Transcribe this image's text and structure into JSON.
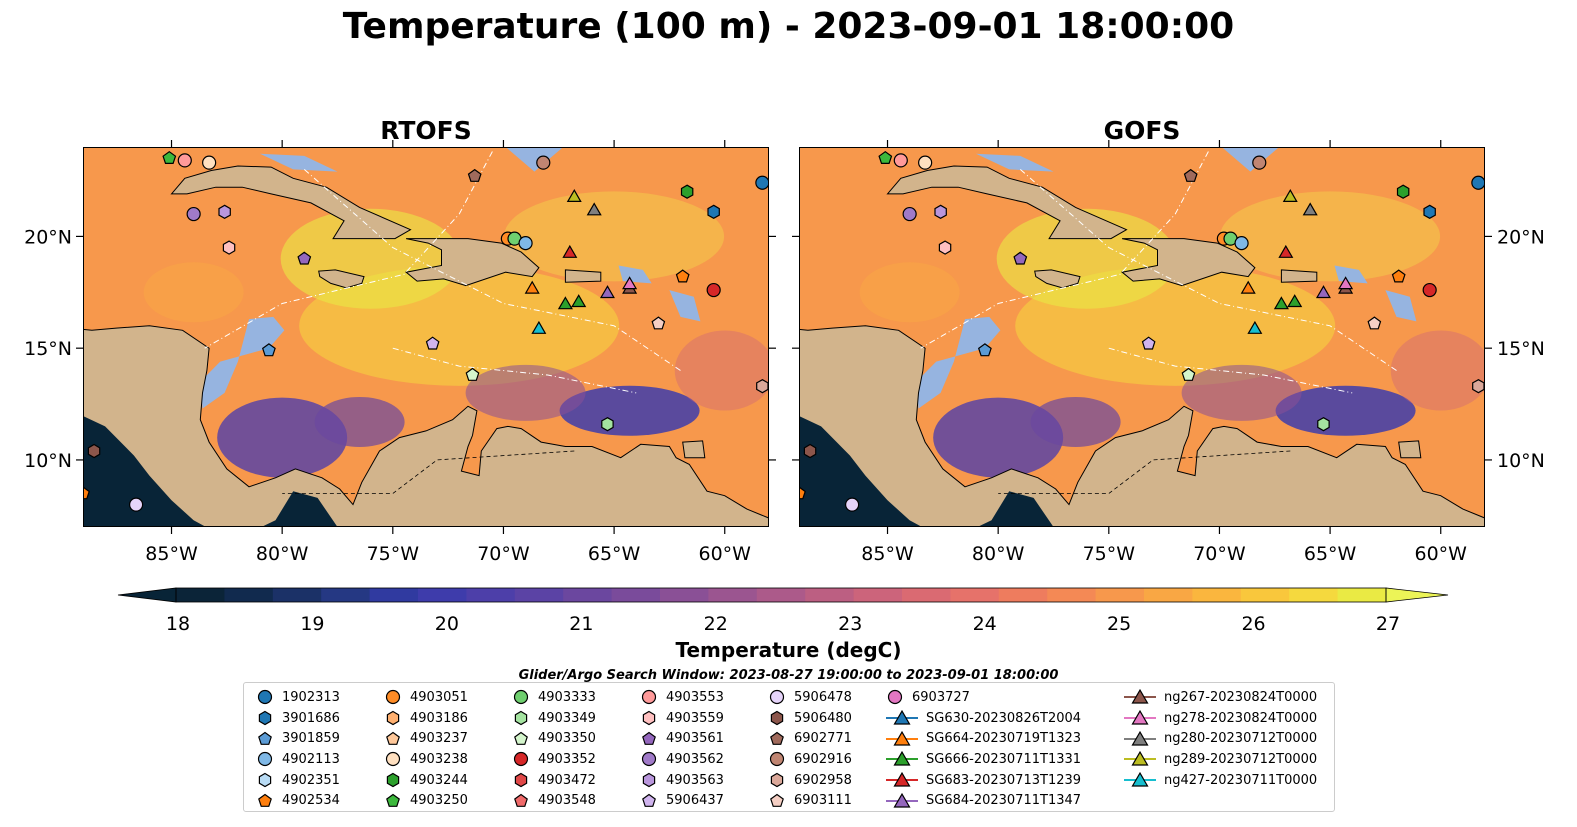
{
  "title": "Temperature (100 m) - 2023-09-01 18:00:00",
  "panels": [
    {
      "title": "RTOFS"
    },
    {
      "title": "GOFS"
    }
  ],
  "map": {
    "lon_range": [
      -89,
      -58
    ],
    "lat_range": [
      7,
      24
    ],
    "lon_ticks": [
      "85°W",
      "80°W",
      "75°W",
      "70°W",
      "65°W",
      "60°W"
    ],
    "lon_tick_values": [
      -85,
      -80,
      -75,
      -70,
      -65,
      -60
    ],
    "lat_ticks": [
      "20°N",
      "15°N",
      "10°N"
    ],
    "lat_tick_values": [
      20,
      15,
      10
    ],
    "land_color": "#d2b48c",
    "shelf_color": "#96b4e0",
    "deep_color": "#082437"
  },
  "colorbar": {
    "label": "Temperature (degC)",
    "min": 18,
    "max": 27,
    "ticks": [
      "18",
      "19",
      "20",
      "21",
      "22",
      "23",
      "24",
      "25",
      "26",
      "27"
    ],
    "colors": [
      "#0b2438",
      "#112a4e",
      "#1b3167",
      "#253883",
      "#303aa0",
      "#3e3cab",
      "#4d3fa9",
      "#5b43a5",
      "#6b479f",
      "#7a4b9b",
      "#8a5096",
      "#9b5590",
      "#ac5a8a",
      "#bc5f82",
      "#cc647b",
      "#da6a72",
      "#e6726a",
      "#ee7c5e",
      "#f48955",
      "#f7984c",
      "#f9a744",
      "#fab63e",
      "#f9c73c",
      "#f5d93e",
      "#eaea44"
    ],
    "extend_under": "#082437",
    "extend_over": "#ecf457"
  },
  "search_window": "Glider/Argo Search Window: 2023-08-27 19:00:00 to 2023-09-01 18:00:00",
  "legend": {
    "columns": [
      [
        {
          "label": "1902313",
          "marker": "circle",
          "color": "#1f77b4"
        },
        {
          "label": "3901686",
          "marker": "hexagon",
          "color": "#1f77b4"
        },
        {
          "label": "3901859",
          "marker": "pentagon",
          "color": "#5b9bd5"
        },
        {
          "label": "4902113",
          "marker": "circle",
          "color": "#7fb8e6"
        },
        {
          "label": "4902351",
          "marker": "hexagon",
          "color": "#b9dcf5"
        },
        {
          "label": "4902534",
          "marker": "pentagon",
          "color": "#ff7f0e"
        }
      ],
      [
        {
          "label": "4903051",
          "marker": "circle",
          "color": "#ff8c26"
        },
        {
          "label": "4903186",
          "marker": "hexagon",
          "color": "#ffb070"
        },
        {
          "label": "4903237",
          "marker": "pentagon",
          "color": "#ffc89a"
        },
        {
          "label": "4903238",
          "marker": "circle",
          "color": "#ffe0c0"
        },
        {
          "label": "4903244",
          "marker": "hexagon",
          "color": "#2ca02c"
        },
        {
          "label": "4903250",
          "marker": "pentagon",
          "color": "#3cb83c"
        }
      ],
      [
        {
          "label": "4903333",
          "marker": "circle",
          "color": "#6fcf6f"
        },
        {
          "label": "4903349",
          "marker": "hexagon",
          "color": "#a4e3a0"
        },
        {
          "label": "4903350",
          "marker": "pentagon",
          "color": "#d4f5cc"
        },
        {
          "label": "4903352",
          "marker": "circle",
          "color": "#d62728"
        },
        {
          "label": "4903472",
          "marker": "hexagon",
          "color": "#e04848"
        },
        {
          "label": "4903548",
          "marker": "pentagon",
          "color": "#f06a6a"
        }
      ],
      [
        {
          "label": "4903553",
          "marker": "circle",
          "color": "#ff9a9a"
        },
        {
          "label": "4903559",
          "marker": "hexagon",
          "color": "#ffc0c0"
        },
        {
          "label": "4903561",
          "marker": "pentagon",
          "color": "#9467bd"
        },
        {
          "label": "4903562",
          "marker": "circle",
          "color": "#a07ac8"
        },
        {
          "label": "4903563",
          "marker": "hexagon",
          "color": "#b996dc"
        },
        {
          "label": "5906437",
          "marker": "pentagon",
          "color": "#d0b4ee"
        }
      ],
      [
        {
          "label": "5906478",
          "marker": "circle",
          "color": "#e6d4fa"
        },
        {
          "label": "5906480",
          "marker": "hexagon",
          "color": "#8c564b"
        },
        {
          "label": "6902771",
          "marker": "pentagon",
          "color": "#a06a5c"
        },
        {
          "label": "6902916",
          "marker": "circle",
          "color": "#c08572"
        },
        {
          "label": "6902958",
          "marker": "hexagon",
          "color": "#dba89a"
        },
        {
          "label": "6903111",
          "marker": "pentagon",
          "color": "#f5cfc4"
        }
      ],
      [
        {
          "label": "6903727",
          "marker": "circle",
          "color": "#e377c2"
        },
        {
          "label": "SG630-20230826T2004",
          "marker": "line-triangle",
          "color": "#1f77b4"
        },
        {
          "label": "SG664-20230719T1323",
          "marker": "line-triangle",
          "color": "#ff7f0e"
        },
        {
          "label": "SG666-20230711T1331",
          "marker": "line-triangle",
          "color": "#2ca02c"
        },
        {
          "label": "SG683-20230713T1239",
          "marker": "line-triangle",
          "color": "#d62728"
        },
        {
          "label": "SG684-20230711T1347",
          "marker": "line-triangle",
          "color": "#9467bd"
        }
      ],
      [
        {
          "label": "ng267-20230824T0000",
          "marker": "line-triangle",
          "color": "#8c564b"
        },
        {
          "label": "ng278-20230824T0000",
          "marker": "line-triangle",
          "color": "#e377c2"
        },
        {
          "label": "ng280-20230712T0000",
          "marker": "line-triangle",
          "color": "#7f7f7f"
        },
        {
          "label": "ng289-20230712T0000",
          "marker": "line-triangle",
          "color": "#bcbd22"
        },
        {
          "label": "ng427-20230711T0000",
          "marker": "line-triangle",
          "color": "#17becf"
        }
      ]
    ]
  },
  "markers": [
    {
      "lon": -85.1,
      "lat": 23.5,
      "marker": "pentagon",
      "color": "#3cb83c"
    },
    {
      "lon": -84.4,
      "lat": 23.4,
      "marker": "circle",
      "color": "#ff9a9a"
    },
    {
      "lon": -83.3,
      "lat": 23.3,
      "marker": "circle",
      "color": "#ffe0c0"
    },
    {
      "lon": -84.0,
      "lat": 21.0,
      "marker": "circle",
      "color": "#a07ac8"
    },
    {
      "lon": -82.6,
      "lat": 21.1,
      "marker": "hexagon",
      "color": "#b996dc"
    },
    {
      "lon": -82.4,
      "lat": 19.5,
      "marker": "hexagon",
      "color": "#ffc0c0"
    },
    {
      "lon": -79.0,
      "lat": 19.0,
      "marker": "pentagon",
      "color": "#9467bd"
    },
    {
      "lon": -80.6,
      "lat": 14.9,
      "marker": "pentagon",
      "color": "#5b9bd5"
    },
    {
      "lon": -73.2,
      "lat": 15.2,
      "marker": "pentagon",
      "color": "#d0b4ee"
    },
    {
      "lon": -71.4,
      "lat": 13.8,
      "marker": "pentagon",
      "color": "#d4f5cc"
    },
    {
      "lon": -69.8,
      "lat": 19.9,
      "marker": "circle",
      "color": "#ff8c26"
    },
    {
      "lon": -69.5,
      "lat": 19.9,
      "marker": "circle",
      "color": "#6fcf6f"
    },
    {
      "lon": -69.0,
      "lat": 19.7,
      "marker": "circle",
      "color": "#7fb8e6"
    },
    {
      "lon": -71.3,
      "lat": 22.7,
      "marker": "pentagon",
      "color": "#a06a5c"
    },
    {
      "lon": -68.2,
      "lat": 23.3,
      "marker": "circle",
      "color": "#c08572"
    },
    {
      "lon": -68.7,
      "lat": 17.7,
      "marker": "triangle",
      "color": "#ff7f0e"
    },
    {
      "lon": -67.0,
      "lat": 19.3,
      "marker": "triangle",
      "color": "#d62728"
    },
    {
      "lon": -66.8,
      "lat": 21.8,
      "marker": "triangle",
      "color": "#bcbd22"
    },
    {
      "lon": -65.9,
      "lat": 21.2,
      "marker": "triangle",
      "color": "#7f7f7f"
    },
    {
      "lon": -67.2,
      "lat": 17.0,
      "marker": "triangle",
      "color": "#2ca02c"
    },
    {
      "lon": -66.6,
      "lat": 17.1,
      "marker": "triangle",
      "color": "#2ca02c"
    },
    {
      "lon": -68.4,
      "lat": 15.9,
      "marker": "triangle",
      "color": "#17becf"
    },
    {
      "lon": -65.3,
      "lat": 17.5,
      "marker": "triangle",
      "color": "#9467bd"
    },
    {
      "lon": -64.3,
      "lat": 17.7,
      "marker": "triangle",
      "color": "#8c564b"
    },
    {
      "lon": -64.3,
      "lat": 17.9,
      "marker": "triangle",
      "color": "#e377c2"
    },
    {
      "lon": -61.9,
      "lat": 18.2,
      "marker": "pentagon",
      "color": "#ff7f0e"
    },
    {
      "lon": -61.7,
      "lat": 22.0,
      "marker": "hexagon",
      "color": "#2ca02c"
    },
    {
      "lon": -60.5,
      "lat": 21.1,
      "marker": "hexagon",
      "color": "#1f77b4"
    },
    {
      "lon": -58.3,
      "lat": 22.4,
      "marker": "circle",
      "color": "#1f77b4"
    },
    {
      "lon": -60.5,
      "lat": 17.6,
      "marker": "circle",
      "color": "#d62728"
    },
    {
      "lon": -63.0,
      "lat": 16.1,
      "marker": "pentagon",
      "color": "#f5cfc4"
    },
    {
      "lon": -58.3,
      "lat": 13.3,
      "marker": "hexagon",
      "color": "#dba89a"
    },
    {
      "lon": -65.3,
      "lat": 11.6,
      "marker": "hexagon",
      "color": "#a4e3a0"
    },
    {
      "lon": -88.5,
      "lat": 10.4,
      "marker": "hexagon",
      "color": "#8c564b"
    },
    {
      "lon": -89.0,
      "lat": 8.5,
      "marker": "pentagon",
      "color": "#ff7f0e"
    },
    {
      "lon": -86.6,
      "lat": 8.0,
      "marker": "circle",
      "color": "#e6d4fa"
    }
  ]
}
